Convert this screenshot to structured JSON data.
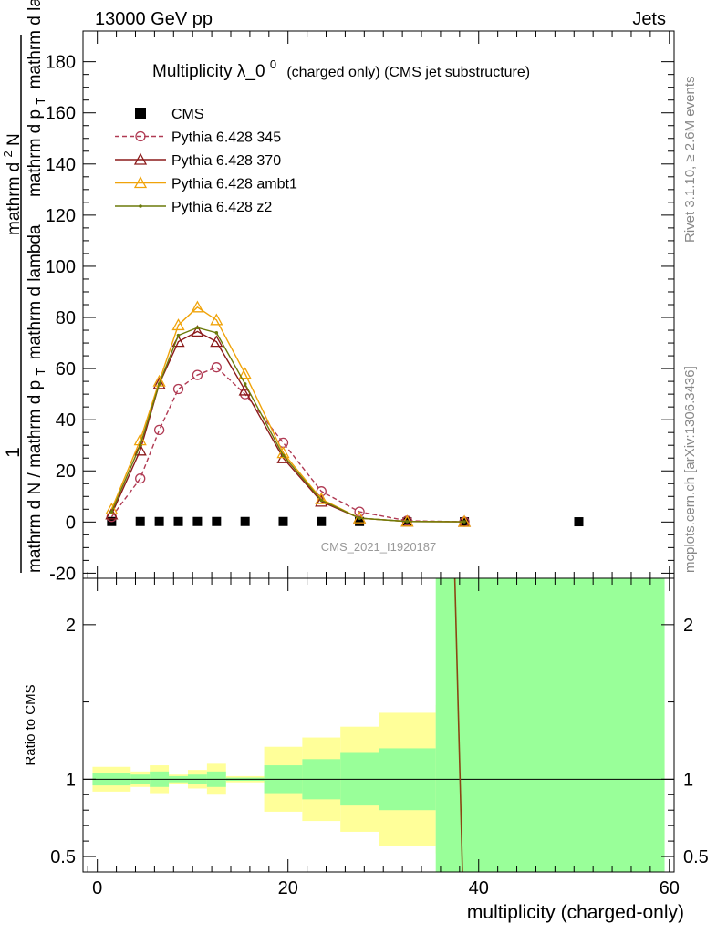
{
  "header": {
    "left": "13000 GeV pp",
    "right": "Jets"
  },
  "side_labels": {
    "rivet": "Rivet 3.1.10, ≥ 2.6M events",
    "mcplots": "mcplots.cern.ch [arXiv:1306.3436]"
  },
  "chart_data": [
    {
      "type": "line",
      "title": "Multiplicity λ_0",
      "title_superscript": "0",
      "title_suffix": "(charged only) (CMS jet substructure)",
      "ylabel_numerator": "1",
      "ylabel_denominator": "mathrm d N / mathrm d p",
      "ylabel_denominator_subscript": "T",
      "ylabel_denominator_suffix": "mathrm d lambda",
      "ylabel_top": "mathrm d",
      "ylabel_top_superscript": "2",
      "ylabel_top_suffix": "N",
      "ylabel_mid": "mathrm d p",
      "ylabel_mid_subscript": "T",
      "ylabel_mid_suffix": "mathrm d lambda",
      "ylim": [
        -22,
        192
      ],
      "xlim": [
        -1.5,
        60.5
      ],
      "yticks": [
        -20,
        0,
        20,
        40,
        60,
        80,
        100,
        120,
        140,
        160,
        180
      ],
      "watermark": "CMS_2021_I1920187",
      "legend_position": "top-left",
      "grid": false,
      "series": [
        {
          "name": "CMS",
          "color": "#000000",
          "marker": "square",
          "x": [
            1.5,
            4.5,
            6.5,
            8.5,
            10.5,
            12.5,
            15.5,
            19.5,
            23.5,
            27.5,
            32.5,
            38.5,
            50.5
          ],
          "values": [
            0.2,
            0.2,
            0.2,
            0.2,
            0.2,
            0.2,
            0.2,
            0.2,
            0.2,
            0.2,
            0.1,
            0.1,
            0.1
          ]
        },
        {
          "name": "Pythia 6.428 345",
          "color": "#b03a53",
          "marker": "open-circle",
          "dashed": true,
          "x": [
            1.5,
            4.5,
            6.5,
            8.5,
            10.5,
            12.5,
            15.5,
            19.5,
            23.5,
            27.5,
            32.5,
            38.5
          ],
          "values": [
            2,
            17,
            36,
            52,
            57.5,
            60.5,
            50,
            31,
            12,
            4,
            0.5,
            0.1
          ]
        },
        {
          "name": "Pythia 6.428 370",
          "color": "#8b1a1a",
          "marker": "open-triangle",
          "x": [
            1.5,
            4.5,
            6.5,
            8.5,
            10.5,
            12.5,
            15.5,
            19.5,
            23.5,
            27.5,
            32.5,
            38.5
          ],
          "values": [
            3,
            28,
            54,
            70.5,
            74.5,
            70.5,
            51.5,
            25,
            8,
            1.5,
            0.2,
            0.1
          ]
        },
        {
          "name": "Pythia 6.428 ambt1",
          "color": "#f0a30a",
          "marker": "open-triangle",
          "x": [
            1.5,
            4.5,
            6.5,
            8.5,
            10.5,
            12.5,
            15.5,
            19.5,
            23.5,
            27.5,
            32.5,
            38.5
          ],
          "values": [
            5,
            32,
            55,
            77,
            84,
            79,
            58,
            27,
            9,
            1.5,
            0.2,
            0.1
          ]
        },
        {
          "name": "Pythia 6.428 z2",
          "color": "#6b7a0a",
          "marker": "dot",
          "x": [
            1.5,
            4.5,
            6.5,
            8.5,
            10.5,
            12.5,
            15.5,
            19.5,
            23.5,
            27.5,
            32.5,
            38.5
          ],
          "values": [
            4,
            30,
            54,
            73,
            76,
            74,
            54,
            26,
            8.5,
            1.5,
            0.2,
            0.1
          ]
        }
      ]
    },
    {
      "type": "area",
      "title": "",
      "ylabel": "Ratio to CMS",
      "xlabel": "multiplicity (charged-only)",
      "xlim": [
        -1.5,
        60.5
      ],
      "ylim": [
        0.4,
        2.3
      ],
      "xticks": [
        0,
        20,
        40,
        60
      ],
      "yticks": [
        0.5,
        1,
        2
      ],
      "bands": {
        "edges": [
          -0.5,
          3.5,
          5.5,
          7.5,
          9.5,
          11.5,
          13.5,
          17.5,
          21.5,
          25.5,
          29.5,
          35.5,
          59.5
        ],
        "yellow_low": [
          0.92,
          0.95,
          0.91,
          0.97,
          0.94,
          0.9,
          0.98,
          0.79,
          0.73,
          0.66,
          0.57,
          0.52
        ],
        "yellow_high": [
          1.08,
          1.05,
          1.09,
          1.03,
          1.06,
          1.1,
          1.02,
          1.21,
          1.27,
          1.34,
          1.43,
          1.48
        ],
        "green_low": [
          0.96,
          0.97,
          0.95,
          0.98,
          0.97,
          0.95,
          0.99,
          0.91,
          0.87,
          0.83,
          0.8,
          0.2
        ],
        "green_high": [
          1.04,
          1.03,
          1.05,
          1.02,
          1.03,
          1.05,
          1.01,
          1.09,
          1.13,
          1.17,
          1.2,
          3
        ]
      },
      "ratio_line": {
        "x": [
          37.5,
          38.3
        ],
        "values": [
          2.4,
          0.35
        ]
      }
    }
  ]
}
